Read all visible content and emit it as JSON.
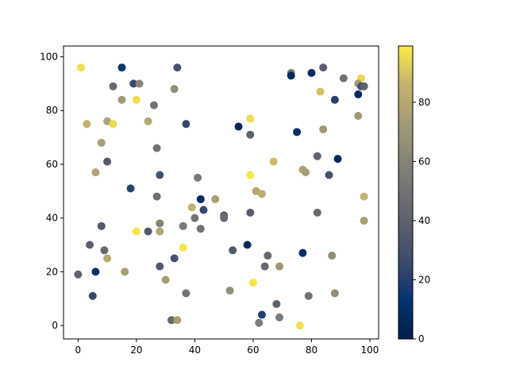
{
  "chart_data": {
    "type": "scatter",
    "colormap": "cividis",
    "xlim": [
      -5,
      103
    ],
    "ylim": [
      -5,
      104
    ],
    "x_ticks": [
      0,
      20,
      40,
      60,
      80,
      100
    ],
    "y_ticks": [
      0,
      20,
      40,
      60,
      80,
      100
    ],
    "colorbar": {
      "min": 0,
      "max": 99,
      "ticks": [
        0,
        20,
        40,
        60,
        80
      ]
    },
    "points": [
      {
        "x": 1,
        "y": 96,
        "c": 96
      },
      {
        "x": 15,
        "y": 96,
        "c": 14
      },
      {
        "x": 34,
        "y": 96,
        "c": 30
      },
      {
        "x": 73,
        "y": 94,
        "c": 55
      },
      {
        "x": 73,
        "y": 93,
        "c": 5
      },
      {
        "x": 80,
        "y": 94,
        "c": 8
      },
      {
        "x": 84,
        "y": 96,
        "c": 38
      },
      {
        "x": 91,
        "y": 92,
        "c": 50
      },
      {
        "x": 97,
        "y": 92,
        "c": 95
      },
      {
        "x": 96,
        "y": 90,
        "c": 75
      },
      {
        "x": 97,
        "y": 89,
        "c": 30
      },
      {
        "x": 98,
        "y": 89,
        "c": 40
      },
      {
        "x": 12,
        "y": 89,
        "c": 45
      },
      {
        "x": 19,
        "y": 90,
        "c": 25
      },
      {
        "x": 21,
        "y": 90,
        "c": 60
      },
      {
        "x": 33,
        "y": 88,
        "c": 65
      },
      {
        "x": 83,
        "y": 87,
        "c": 90
      },
      {
        "x": 96,
        "y": 86,
        "c": 8
      },
      {
        "x": 15,
        "y": 84,
        "c": 72
      },
      {
        "x": 20,
        "y": 84,
        "c": 96
      },
      {
        "x": 26,
        "y": 82,
        "c": 50
      },
      {
        "x": 88,
        "y": 84,
        "c": 20
      },
      {
        "x": 96,
        "y": 78,
        "c": 72
      },
      {
        "x": 3,
        "y": 75,
        "c": 85
      },
      {
        "x": 10,
        "y": 76,
        "c": 78
      },
      {
        "x": 12,
        "y": 75,
        "c": 95
      },
      {
        "x": 24,
        "y": 76,
        "c": 80
      },
      {
        "x": 37,
        "y": 75,
        "c": 25
      },
      {
        "x": 55,
        "y": 74,
        "c": 5
      },
      {
        "x": 59,
        "y": 77,
        "c": 96
      },
      {
        "x": 59,
        "y": 71,
        "c": 40
      },
      {
        "x": 75,
        "y": 72,
        "c": 10
      },
      {
        "x": 84,
        "y": 73,
        "c": 72
      },
      {
        "x": 8,
        "y": 68,
        "c": 75
      },
      {
        "x": 27,
        "y": 66,
        "c": 50
      },
      {
        "x": 10,
        "y": 61,
        "c": 35
      },
      {
        "x": 67,
        "y": 61,
        "c": 88
      },
      {
        "x": 82,
        "y": 63,
        "c": 42
      },
      {
        "x": 89,
        "y": 62,
        "c": 6
      },
      {
        "x": 6,
        "y": 57,
        "c": 78
      },
      {
        "x": 28,
        "y": 56,
        "c": 30
      },
      {
        "x": 41,
        "y": 55,
        "c": 55
      },
      {
        "x": 59,
        "y": 56,
        "c": 98
      },
      {
        "x": 77,
        "y": 58,
        "c": 78
      },
      {
        "x": 78,
        "y": 57,
        "c": 75
      },
      {
        "x": 86,
        "y": 56,
        "c": 30
      },
      {
        "x": 18,
        "y": 51,
        "c": 22
      },
      {
        "x": 61,
        "y": 50,
        "c": 80
      },
      {
        "x": 63,
        "y": 49,
        "c": 82
      },
      {
        "x": 98,
        "y": 48,
        "c": 85
      },
      {
        "x": 27,
        "y": 48,
        "c": 48
      },
      {
        "x": 42,
        "y": 47,
        "c": 8
      },
      {
        "x": 47,
        "y": 47,
        "c": 75
      },
      {
        "x": 39,
        "y": 44,
        "c": 85
      },
      {
        "x": 43,
        "y": 43,
        "c": 25
      },
      {
        "x": 59,
        "y": 42,
        "c": 38
      },
      {
        "x": 82,
        "y": 42,
        "c": 45
      },
      {
        "x": 50,
        "y": 41,
        "c": 40
      },
      {
        "x": 50,
        "y": 40,
        "c": 45
      },
      {
        "x": 40,
        "y": 40,
        "c": 50
      },
      {
        "x": 98,
        "y": 39,
        "c": 75
      },
      {
        "x": 28,
        "y": 38,
        "c": 60
      },
      {
        "x": 36,
        "y": 37,
        "c": 55
      },
      {
        "x": 8,
        "y": 37,
        "c": 35
      },
      {
        "x": 42,
        "y": 36,
        "c": 50
      },
      {
        "x": 20,
        "y": 35,
        "c": 98
      },
      {
        "x": 24,
        "y": 35,
        "c": 35
      },
      {
        "x": 28,
        "y": 35,
        "c": 80
      },
      {
        "x": 4,
        "y": 30,
        "c": 40
      },
      {
        "x": 58,
        "y": 30,
        "c": 5
      },
      {
        "x": 36,
        "y": 29,
        "c": 98
      },
      {
        "x": 9,
        "y": 28,
        "c": 45
      },
      {
        "x": 53,
        "y": 28,
        "c": 35
      },
      {
        "x": 77,
        "y": 27,
        "c": 10
      },
      {
        "x": 65,
        "y": 26,
        "c": 45
      },
      {
        "x": 87,
        "y": 26,
        "c": 65
      },
      {
        "x": 10,
        "y": 25,
        "c": 80
      },
      {
        "x": 33,
        "y": 25,
        "c": 30
      },
      {
        "x": 28,
        "y": 22,
        "c": 35
      },
      {
        "x": 64,
        "y": 22,
        "c": 45
      },
      {
        "x": 69,
        "y": 22,
        "c": 70
      },
      {
        "x": 16,
        "y": 20,
        "c": 75
      },
      {
        "x": 6,
        "y": 20,
        "c": 10
      },
      {
        "x": 0,
        "y": 19,
        "c": 40
      },
      {
        "x": 30,
        "y": 17,
        "c": 75
      },
      {
        "x": 60,
        "y": 16,
        "c": 98
      },
      {
        "x": 52,
        "y": 13,
        "c": 65
      },
      {
        "x": 37,
        "y": 12,
        "c": 50
      },
      {
        "x": 88,
        "y": 12,
        "c": 65
      },
      {
        "x": 5,
        "y": 11,
        "c": 25
      },
      {
        "x": 79,
        "y": 11,
        "c": 50
      },
      {
        "x": 68,
        "y": 8,
        "c": 40
      },
      {
        "x": 63,
        "y": 4,
        "c": 20
      },
      {
        "x": 69,
        "y": 3,
        "c": 55
      },
      {
        "x": 32,
        "y": 2,
        "c": 45
      },
      {
        "x": 34,
        "y": 2,
        "c": 75
      },
      {
        "x": 62,
        "y": 1,
        "c": 55
      },
      {
        "x": 76,
        "y": 0,
        "c": 96
      }
    ]
  }
}
